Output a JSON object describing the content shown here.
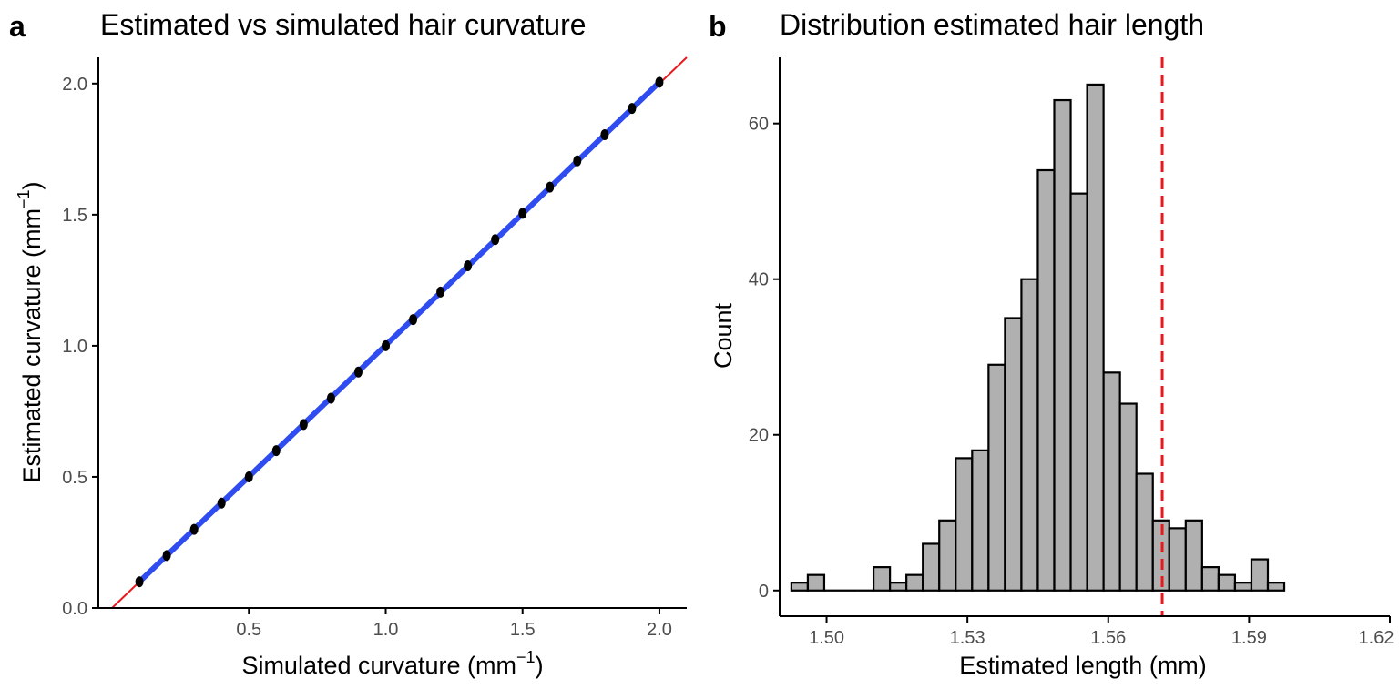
{
  "chart_data": [
    {
      "panel": "a",
      "type": "scatter",
      "title": "Estimated vs simulated hair curvature",
      "xlabel": "Simulated curvature (mm",
      "xlabel_sup": "−1",
      "xlabel_end": ")",
      "ylabel": "Estimated curvature (mm",
      "ylabel_sup": "−1",
      "ylabel_end": ")",
      "xlim": [
        -0.05,
        2.1
      ],
      "ylim": [
        0.0,
        2.1
      ],
      "xticks": [
        0.5,
        1.0,
        1.5,
        2.0
      ],
      "xtick_labels": [
        "0.5",
        "1.0",
        "1.5",
        "2.0"
      ],
      "yticks": [
        0.0,
        0.5,
        1.0,
        1.5,
        2.0
      ],
      "ytick_labels": [
        "0.0",
        "0.5",
        "1.0",
        "1.5",
        "2.0"
      ],
      "x": [
        0.1,
        0.2,
        0.3,
        0.4,
        0.5,
        0.6,
        0.7,
        0.8,
        0.9,
        1.0,
        1.1,
        1.2,
        1.3,
        1.4,
        1.5,
        1.6,
        1.7,
        1.8,
        1.9,
        2.0
      ],
      "y": [
        0.1,
        0.2,
        0.3,
        0.4,
        0.5,
        0.6,
        0.7,
        0.8,
        0.9,
        1.0,
        1.1,
        1.205,
        1.305,
        1.405,
        1.505,
        1.605,
        1.705,
        1.805,
        1.905,
        2.005
      ],
      "point_color": "#000000",
      "fit_line": {
        "x": [
          0.1,
          2.0
        ],
        "y": [
          0.1,
          2.005
        ],
        "color": "#2f4cf0"
      },
      "identity_line": {
        "x": [
          0.0,
          2.1
        ],
        "y": [
          0.0,
          2.1
        ],
        "color": "#e8191d"
      },
      "grid": false
    },
    {
      "panel": "b",
      "type": "bar",
      "subtype": "histogram",
      "title": "Distribution estimated hair length",
      "xlabel": "Estimated length (mm)",
      "ylabel": "Count",
      "xlim": [
        1.49,
        1.62
      ],
      "ylim": [
        -3.3,
        68.5
      ],
      "xticks": [
        1.5,
        1.53,
        1.56,
        1.59,
        1.62
      ],
      "xtick_labels": [
        "1.50",
        "1.53",
        "1.56",
        "1.59",
        "1.62"
      ],
      "yticks": [
        0,
        20,
        40,
        60
      ],
      "ytick_labels": [
        "0",
        "20",
        "40",
        "60"
      ],
      "bin_start": 1.4925,
      "bin_width": 0.0035,
      "counts": [
        1,
        2,
        0,
        0,
        0,
        3,
        1,
        2,
        6,
        9,
        17,
        18,
        29,
        35,
        40,
        54,
        63,
        51,
        65,
        28,
        24,
        15,
        9,
        8,
        9,
        3,
        2,
        1,
        4,
        1
      ],
      "bar_fill": "#b0b0b0",
      "bar_stroke": "#000000",
      "vline": {
        "x": 1.5715,
        "color": "#e8191d",
        "style": "dashed"
      },
      "grid": false
    }
  ]
}
